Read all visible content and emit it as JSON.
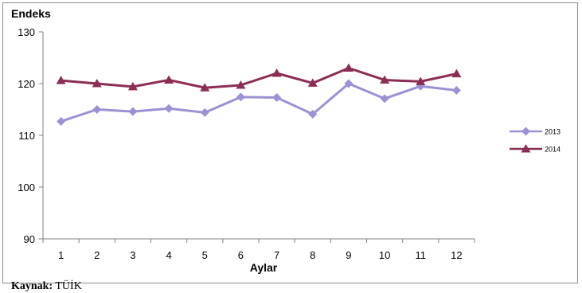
{
  "source_note": {
    "label": "Kaynak:",
    "value": "TÜİK"
  },
  "chart_data": {
    "type": "line",
    "title": "",
    "ylabel": "Endeks",
    "xlabel": "Aylar",
    "ylim": [
      90,
      130
    ],
    "yticks": [
      90,
      100,
      110,
      120,
      130
    ],
    "x": [
      1,
      2,
      3,
      4,
      5,
      6,
      7,
      8,
      9,
      10,
      11,
      12
    ],
    "legend_position": "right",
    "grid": false,
    "series": [
      {
        "name": "2013",
        "color": "#9b92d6",
        "marker": "diamond",
        "values": [
          112.7,
          115.0,
          114.6,
          115.2,
          114.4,
          117.4,
          117.3,
          114.1,
          120.0,
          117.1,
          119.5,
          118.7
        ]
      },
      {
        "name": "2014",
        "color": "#8b2d55",
        "marker": "triangle",
        "values": [
          120.6,
          120.0,
          119.4,
          120.7,
          119.2,
          119.7,
          122.0,
          120.1,
          123.0,
          120.7,
          120.4,
          121.9
        ]
      }
    ]
  }
}
